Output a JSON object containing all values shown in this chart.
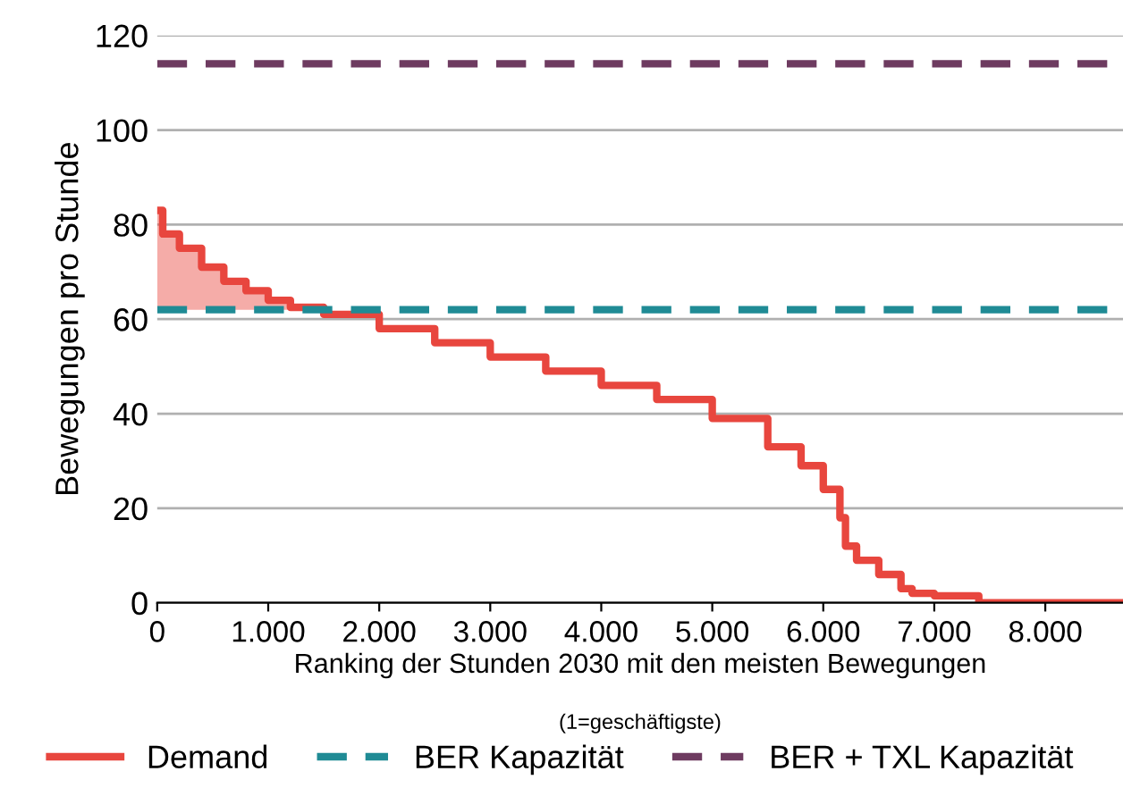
{
  "chart_data": {
    "type": "step",
    "ylabel": "Bewegungen pro Stunde",
    "xlabel": "Ranking der Stunden 2030 mit den meisten Bewegungen",
    "annotations": [
      "(1=geschäftigste)"
    ],
    "series": [
      {
        "name": "Demand",
        "color": "#e8463e",
        "x": [
          0,
          50,
          200,
          400,
          600,
          800,
          1000,
          1200,
          1500,
          2000,
          2500,
          3000,
          3500,
          4000,
          4500,
          5000,
          5500,
          5800,
          6000,
          6150,
          6200,
          6300,
          6500,
          6700,
          6800,
          7000,
          7400,
          7401,
          8700
        ],
        "values": [
          83,
          78,
          75,
          71,
          68,
          66,
          64,
          62.5,
          61,
          58,
          55,
          52,
          49,
          46,
          43,
          39,
          33,
          29,
          24,
          18,
          12,
          9,
          6,
          3,
          2,
          1.5,
          1.5,
          0,
          0
        ],
        "lower": [
          62,
          62,
          62,
          62,
          62,
          62,
          62,
          62,
          null,
          null,
          null,
          null,
          null,
          null,
          null,
          null,
          null,
          null,
          null,
          null,
          null,
          null,
          null,
          null,
          null,
          null,
          null,
          null,
          null
        ],
        "upper": [
          83,
          78,
          75,
          71,
          68,
          66,
          64,
          62.5,
          null,
          null,
          null,
          null,
          null,
          null,
          null,
          null,
          null,
          null,
          null,
          null,
          null,
          null,
          null,
          null,
          null,
          null,
          null,
          null,
          null
        ]
      },
      {
        "name": "BER Kapazität",
        "color": "#1f8b95",
        "type": "line",
        "line_style": "dashed",
        "x": [
          0,
          8700
        ],
        "values": [
          62,
          62
        ]
      },
      {
        "name": "BER + TXL Kapazität",
        "color": "#6e3b60",
        "type": "line",
        "line_style": "dashed",
        "x": [
          0,
          8700
        ],
        "values": [
          114,
          114
        ]
      }
    ],
    "xlim": [
      0,
      8700
    ],
    "ylim": [
      0,
      120
    ],
    "xticks": [
      0,
      {
        "value": 1000,
        "label": "1.000"
      },
      {
        "value": 2000,
        "label": "2.000"
      },
      {
        "value": 3000,
        "label": "3.000"
      },
      {
        "value": 4000,
        "label": "4.000"
      },
      {
        "value": 5000,
        "label": "5.000"
      },
      {
        "value": 6000,
        "label": "6.000"
      },
      {
        "value": 7000,
        "label": "7.000"
      },
      {
        "value": 8000,
        "label": "8.000"
      }
    ],
    "yticks": [
      0,
      20,
      40,
      60,
      80,
      100,
      120
    ],
    "grid": "y",
    "legend": "bottom"
  }
}
